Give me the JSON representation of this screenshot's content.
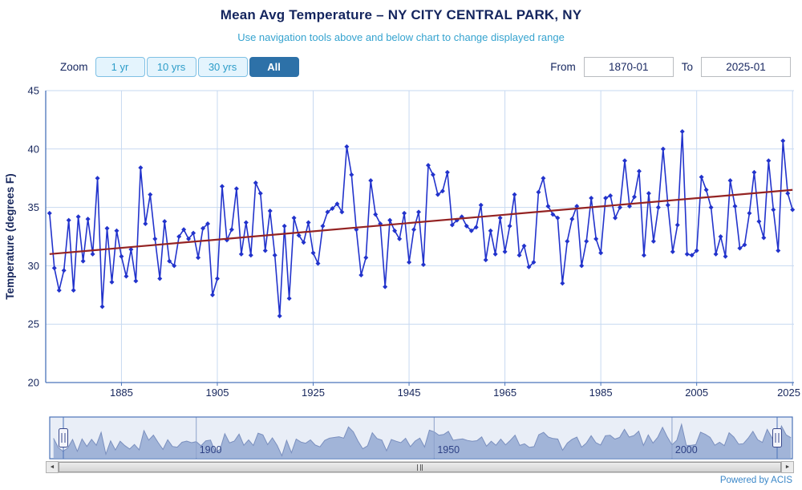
{
  "header": {
    "title": "Mean Avg Temperature – NY CITY CENTRAL PARK, NY",
    "subtitle": "Use navigation tools above and below chart to change displayed range"
  },
  "controls": {
    "zoom_label": "Zoom",
    "zoom_buttons": [
      {
        "label": "1 yr",
        "selected": false
      },
      {
        "label": "10 yrs",
        "selected": false
      },
      {
        "label": "30 yrs",
        "selected": false
      },
      {
        "label": "All",
        "selected": true
      }
    ],
    "from_label": "From",
    "from_value": "1870-01",
    "to_label": "To",
    "to_value": "2025-01"
  },
  "chart_data": {
    "type": "line",
    "title": "Mean Avg Temperature – NY CITY CENTRAL PARK, NY",
    "subtitle": "Use navigation tools above and below chart to change displayed range",
    "xlabel": "",
    "ylabel": "Temperature (degrees F)",
    "ylim": [
      20,
      45
    ],
    "yticks": [
      20,
      25,
      30,
      35,
      40,
      45
    ],
    "xlim": [
      1870,
      2025
    ],
    "xticks": [
      1885,
      1905,
      1925,
      1945,
      1965,
      1985,
      2005,
      2025
    ],
    "x_start": 1870,
    "x_step": 1,
    "grid": true,
    "grid_color": "#c7d9f1",
    "axis_color": "#4a74ba",
    "text_color": "#16265c",
    "series": [
      {
        "name": "Mean Avg Temperature",
        "type": "line",
        "color": "#2233cc",
        "marker": "diamond",
        "values": [
          34.5,
          29.8,
          27.9,
          29.6,
          33.9,
          27.9,
          34.2,
          30.4,
          34.0,
          31.0,
          37.5,
          26.5,
          33.2,
          28.6,
          33.0,
          30.8,
          29.1,
          31.4,
          28.7,
          38.4,
          33.6,
          36.1,
          32.3,
          28.9,
          33.8,
          30.4,
          30.0,
          32.5,
          33.1,
          32.3,
          32.8,
          30.7,
          33.2,
          33.6,
          27.5,
          28.9,
          36.8,
          32.2,
          33.1,
          36.6,
          31.0,
          33.7,
          30.9,
          37.1,
          36.2,
          31.3,
          34.7,
          30.9,
          25.7,
          33.4,
          27.2,
          34.1,
          32.6,
          32.0,
          33.7,
          31.1,
          30.2,
          33.4,
          34.6,
          34.9,
          35.3,
          34.6,
          40.2,
          37.8,
          33.1,
          29.2,
          30.7,
          37.3,
          34.4,
          33.6,
          28.2,
          33.9,
          33.0,
          32.3,
          34.5,
          30.3,
          33.1,
          34.6,
          30.1,
          38.6,
          37.8,
          36.1,
          36.4,
          38.0,
          33.5,
          33.9,
          34.2,
          33.4,
          33.0,
          33.3,
          35.2,
          30.5,
          33.0,
          31.0,
          34.1,
          31.2,
          33.4,
          36.1,
          30.9,
          31.7,
          29.9,
          30.3,
          36.3,
          37.5,
          35.1,
          34.4,
          34.1,
          28.5,
          32.1,
          34.0,
          35.1,
          30.0,
          32.1,
          35.8,
          32.3,
          31.1,
          35.8,
          36.0,
          34.1,
          35.0,
          39.0,
          35.1,
          35.9,
          38.1,
          30.9,
          36.2,
          32.1,
          35.0,
          40.0,
          35.2,
          31.2,
          33.5,
          41.5,
          31.0,
          30.9,
          31.3,
          37.6,
          36.5,
          35.0,
          31.0,
          32.5,
          30.8,
          37.3,
          35.1,
          31.5,
          31.8,
          34.5,
          38.0,
          33.8,
          32.4,
          39.0,
          34.8,
          31.3,
          40.7,
          36.2,
          34.8
        ]
      },
      {
        "name": "Trend",
        "type": "trend",
        "color": "#942323",
        "x": [
          1870,
          2025
        ],
        "values": [
          31.0,
          36.5
        ]
      }
    ],
    "navigator": {
      "ticks": [
        1900,
        1950,
        2000
      ],
      "area_color": "#abbbdb",
      "line_color": "#7d90bd",
      "mask_color": "rgba(110,140,200,0.15)",
      "border_color": "#4a72b8",
      "tick_line_color": "#93a6cc",
      "label_color": "#24357a"
    },
    "legend": "off"
  },
  "scrollbar": {
    "left_arrow": "◄",
    "right_arrow": "►"
  },
  "footer": {
    "credit": "Powered by ACIS"
  },
  "colors": {
    "title": "#14255e",
    "subtitle": "#35a3cf",
    "button_bg": "#e4f4fd",
    "button_border": "#7ec0e4",
    "button_text": "#2d9dc9",
    "button_selected_bg": "#2d71a8",
    "button_selected_text": "#ffffff",
    "credit": "#3a87c8"
  }
}
